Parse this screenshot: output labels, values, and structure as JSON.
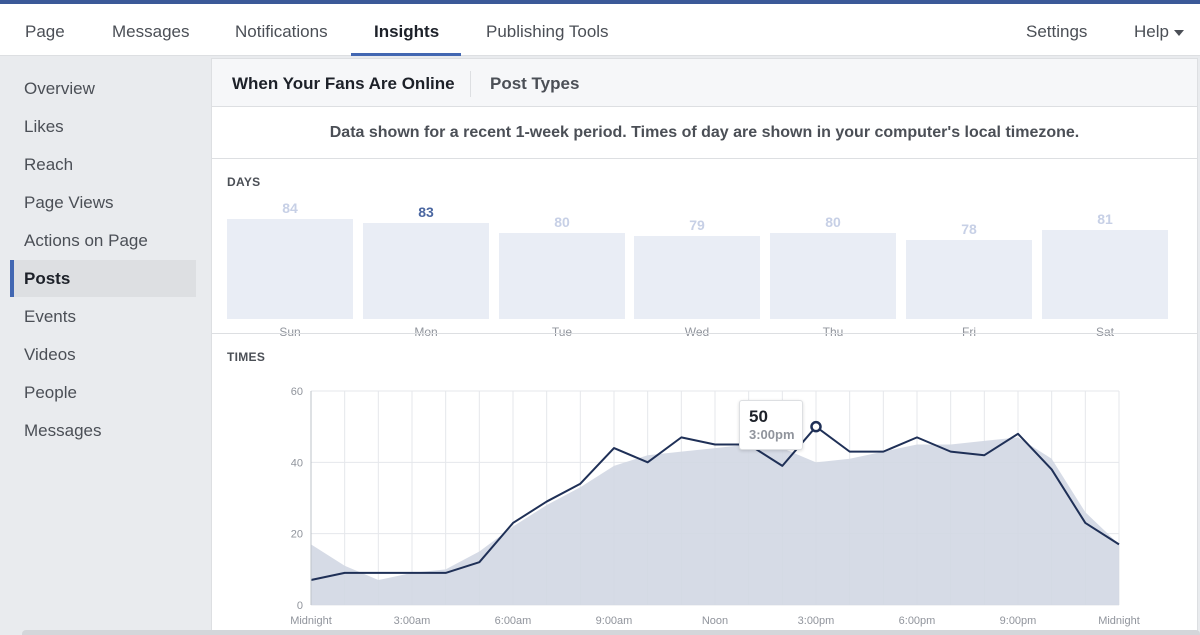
{
  "nav": {
    "tabs": [
      {
        "label": "Page"
      },
      {
        "label": "Messages"
      },
      {
        "label": "Notifications"
      },
      {
        "label": "Insights"
      },
      {
        "label": "Publishing Tools"
      }
    ],
    "right": [
      {
        "label": "Settings"
      },
      {
        "label": "Help"
      }
    ]
  },
  "sidebar": {
    "items": [
      {
        "label": "Overview"
      },
      {
        "label": "Likes"
      },
      {
        "label": "Reach"
      },
      {
        "label": "Page Views"
      },
      {
        "label": "Actions on Page"
      },
      {
        "label": "Posts"
      },
      {
        "label": "Events"
      },
      {
        "label": "Videos"
      },
      {
        "label": "People"
      },
      {
        "label": "Messages"
      }
    ],
    "active": "Posts"
  },
  "subtabs": {
    "items": [
      {
        "label": "When Your Fans Are Online"
      },
      {
        "label": "Post Types"
      }
    ],
    "active": "When Your Fans Are Online"
  },
  "notice": "Data shown for a recent 1-week period. Times of day are shown in your computer's local timezone.",
  "days": {
    "title": "DAYS",
    "items": [
      {
        "label": "Sun",
        "value": "84"
      },
      {
        "label": "Mon",
        "value": "83"
      },
      {
        "label": "Tue",
        "value": "80"
      },
      {
        "label": "Wed",
        "value": "79"
      },
      {
        "label": "Thu",
        "value": "80"
      },
      {
        "label": "Fri",
        "value": "78"
      },
      {
        "label": "Sat",
        "value": "81"
      }
    ],
    "highlighted": "Mon"
  },
  "times": {
    "title": "TIMES",
    "tooltip": {
      "value": "50",
      "time": "3:00pm"
    }
  },
  "colors": {
    "accent": "#4267b2",
    "line": "#1f3057",
    "area": "#d1d7e3",
    "bar": "#e9edf5"
  },
  "chart_data": [
    {
      "type": "bar",
      "title": "DAYS",
      "categories": [
        "Sun",
        "Mon",
        "Tue",
        "Wed",
        "Thu",
        "Fri",
        "Sat"
      ],
      "values": [
        84,
        83,
        80,
        79,
        80,
        78,
        81
      ]
    },
    {
      "type": "line",
      "title": "TIMES",
      "x": [
        "Midnight",
        "1:00am",
        "2:00am",
        "3:00am",
        "4:00am",
        "5:00am",
        "6:00am",
        "7:00am",
        "8:00am",
        "9:00am",
        "10:00am",
        "11:00am",
        "Noon",
        "1:00pm",
        "2:00pm",
        "3:00pm",
        "4:00pm",
        "5:00pm",
        "6:00pm",
        "7:00pm",
        "8:00pm",
        "9:00pm",
        "10:00pm",
        "11:00pm",
        "Midnight"
      ],
      "xticks": [
        "Midnight",
        "3:00am",
        "6:00am",
        "9:00am",
        "Noon",
        "3:00pm",
        "6:00pm",
        "9:00pm",
        "Midnight"
      ],
      "yticks": [
        0,
        20,
        40,
        60
      ],
      "ylim": [
        0,
        60
      ],
      "series": [
        {
          "values": [
            7,
            9,
            9,
            9,
            9,
            12,
            23,
            29,
            34,
            44,
            40,
            47,
            45,
            45,
            39,
            50,
            43,
            43,
            47,
            43,
            42,
            48,
            38,
            23,
            17
          ]
        },
        {
          "style": "area",
          "values": [
            17,
            11,
            7,
            9,
            10,
            15,
            22,
            28,
            33,
            39,
            42,
            43,
            44,
            45,
            44,
            40,
            41,
            43,
            45,
            45,
            46,
            47,
            41,
            26,
            17
          ]
        }
      ],
      "grid": true,
      "legend": "none"
    }
  ]
}
